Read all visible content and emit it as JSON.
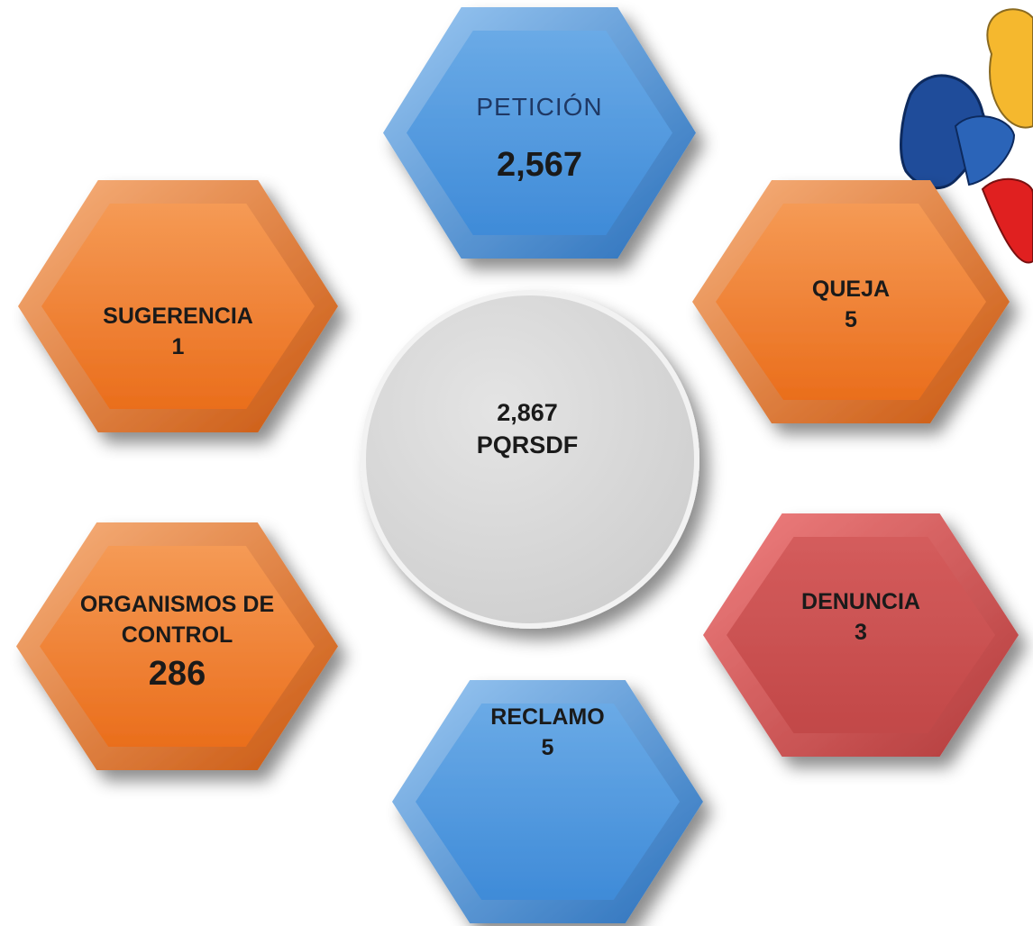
{
  "center": {
    "value": "2,867",
    "label": "PQRSDF"
  },
  "nodes": [
    {
      "label": "PETICIÓN",
      "value": "2,567"
    },
    {
      "label": "QUEJA",
      "value": "5"
    },
    {
      "label": "SUGERENCIA",
      "value": "1"
    },
    {
      "label": "ORGANISMOS DE CONTROL",
      "value": "286"
    },
    {
      "label": "DENUNCIA",
      "value": "3"
    },
    {
      "label": "RECLAMO",
      "value": "5"
    }
  ]
}
